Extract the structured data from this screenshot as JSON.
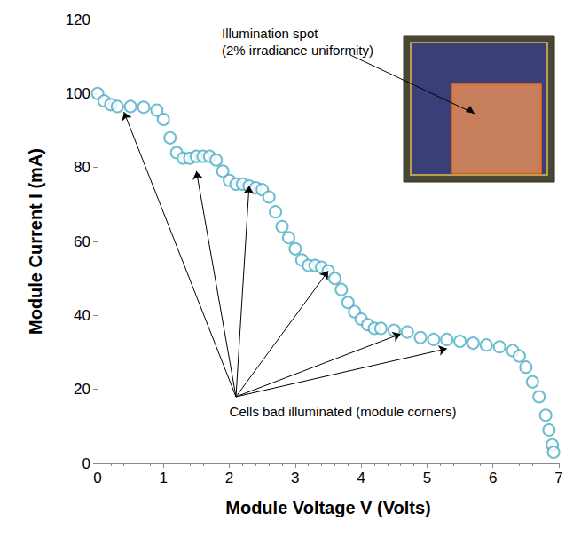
{
  "chart_data": {
    "type": "scatter",
    "xlabel": "Module Voltage V (Volts)",
    "ylabel": "Module Current I (mA)",
    "x": [
      0.0,
      0.1,
      0.2,
      0.3,
      0.5,
      0.7,
      0.9,
      1.0,
      1.1,
      1.2,
      1.3,
      1.4,
      1.5,
      1.6,
      1.7,
      1.8,
      1.9,
      2.0,
      2.1,
      2.2,
      2.3,
      2.4,
      2.5,
      2.6,
      2.7,
      2.8,
      2.9,
      3.0,
      3.1,
      3.2,
      3.3,
      3.4,
      3.5,
      3.6,
      3.7,
      3.8,
      3.9,
      4.0,
      4.1,
      4.2,
      4.3,
      4.5,
      4.7,
      4.9,
      5.1,
      5.3,
      5.5,
      5.7,
      5.9,
      6.1,
      6.3,
      6.4,
      6.5,
      6.6,
      6.7,
      6.8,
      6.85,
      6.9,
      6.92
    ],
    "values": [
      100,
      98,
      97,
      96.5,
      96.5,
      96.3,
      95.5,
      93,
      88,
      84,
      82.5,
      82.5,
      83,
      83,
      83,
      82,
      79,
      76.5,
      75.5,
      75.5,
      75,
      74.5,
      74,
      72,
      68,
      64,
      61,
      58,
      55,
      53.5,
      53.5,
      53,
      52,
      50,
      47,
      43.5,
      41,
      39,
      37.5,
      36.5,
      36.5,
      36,
      35.5,
      34,
      33.5,
      33.5,
      33,
      32.5,
      32,
      31.5,
      30.5,
      29,
      26,
      22,
      18,
      13,
      9,
      5,
      3
    ],
    "color": "#4bacc6",
    "marker": "circle-open",
    "xlim": [
      0,
      7
    ],
    "xticks": [
      0,
      1,
      2,
      3,
      4,
      5,
      6,
      7
    ],
    "ylim": [
      0,
      120
    ],
    "yticks": [
      0,
      20,
      40,
      60,
      80,
      100,
      120
    ],
    "grid": false,
    "annotations": [
      {
        "text": "Cells bad illuminated (module corners)",
        "x": 2.0,
        "y": 14,
        "arrow_from": [
          2.1,
          18
        ],
        "arrow_to": [
          [
            0.4,
            95
          ],
          [
            1.5,
            79
          ],
          [
            2.3,
            75
          ],
          [
            3.5,
            52
          ],
          [
            4.6,
            35
          ],
          [
            5.3,
            31
          ]
        ]
      },
      {
        "text": "Illumination spot (2% irradiance uniformity)"
      }
    ]
  }
}
